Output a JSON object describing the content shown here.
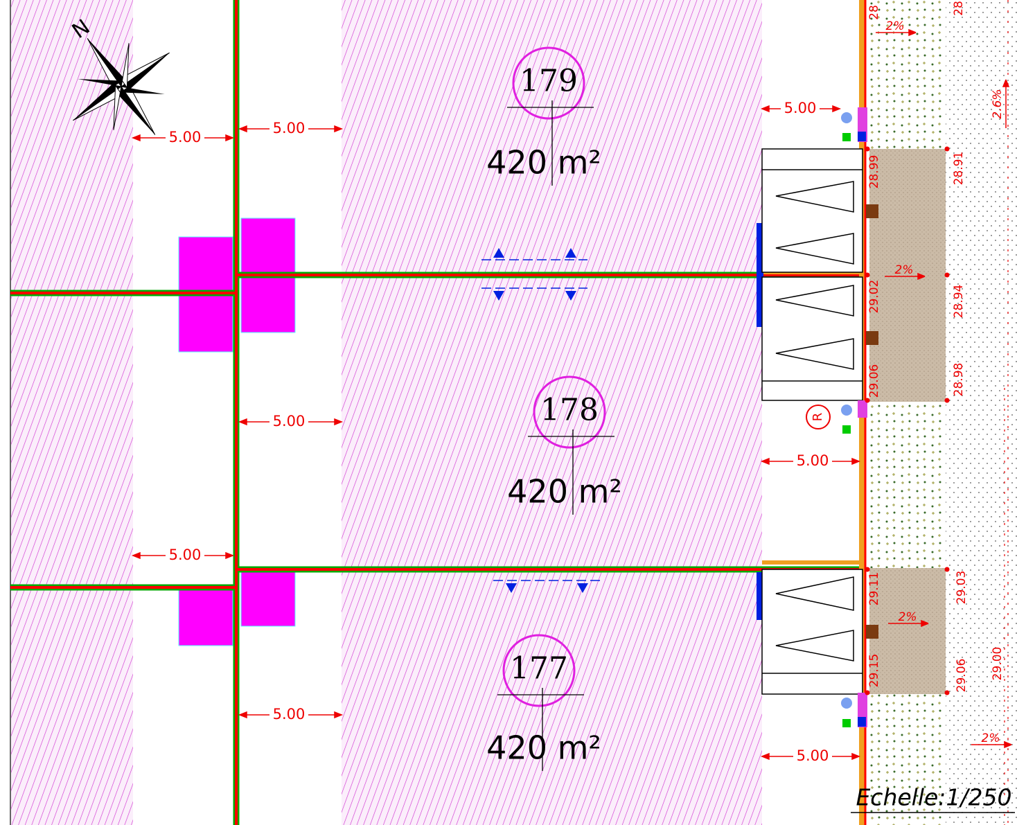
{
  "north": "N",
  "lots": [
    {
      "number": "179",
      "area": "420 m²"
    },
    {
      "number": "178",
      "area": "420 m²"
    },
    {
      "number": "177",
      "area": "420 m²"
    }
  ],
  "dimensions": [
    "5.00",
    "5.00",
    "5.00",
    "5.00",
    "5.00",
    "5.00",
    "5.00",
    "5.00"
  ],
  "elevations": [
    "28.99",
    "29.02",
    "29.06",
    "28.91",
    "28.94",
    "28.98",
    "29.11",
    "29.15",
    "29.03",
    "29.06",
    "29.00",
    "28",
    "28"
  ],
  "slopes": [
    "2%",
    "2%",
    "2%",
    "2%",
    "2.6%"
  ],
  "marker": "R",
  "scale": "Echelle:1/250"
}
